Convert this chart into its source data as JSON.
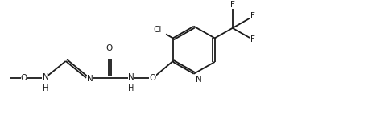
{
  "bg_color": "#ffffff",
  "line_color": "#1a1a1a",
  "text_color": "#1a1a1a",
  "line_width": 1.3,
  "font_size": 7.5,
  "figsize": [
    4.62,
    1.48
  ],
  "dpi": 100,
  "xlim": [
    0,
    4.62
  ],
  "ylim": [
    0,
    1.48
  ]
}
